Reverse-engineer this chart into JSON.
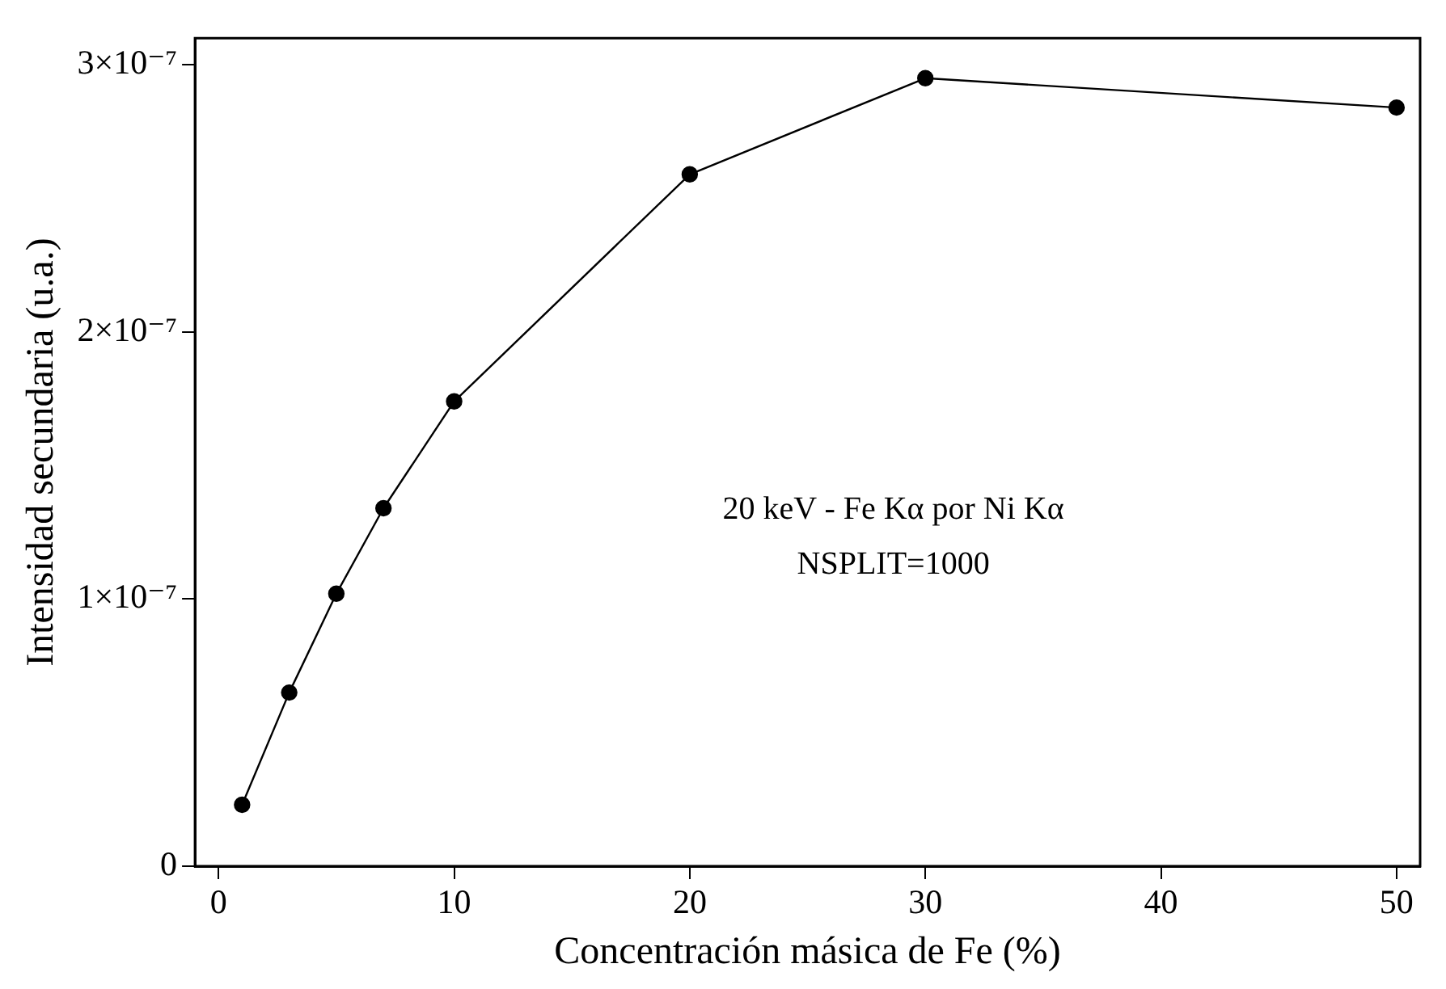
{
  "chart_data": {
    "type": "line",
    "xlabel": "Concentración másica de Fe (%)",
    "ylabel": "Intensidad secundaria (u.a.)",
    "x": [
      1,
      3,
      5,
      7,
      10,
      20,
      30,
      50
    ],
    "series": [
      {
        "color": "#000000",
        "values": [
          2.3e-08,
          6.5e-08,
          1.02e-07,
          1.34e-07,
          1.74e-07,
          2.59e-07,
          2.95e-07,
          2.84e-07
        ]
      }
    ],
    "xlim": [
      -1,
      51
    ],
    "xticks": [
      0,
      10,
      20,
      30,
      40,
      50
    ],
    "ylim": [
      0,
      3.1e-07
    ],
    "yticks": [
      0,
      {
        "value": 1e-07,
        "label": "1×10⁻⁷"
      },
      {
        "value": 2e-07,
        "label": "2×10⁻⁷"
      },
      {
        "value": 3e-07,
        "label": "3×10⁻⁷"
      }
    ],
    "annotations": [
      "20 keV - Fe Kα por Ni Kα",
      "NSPLIT=1000"
    ],
    "marker": "circle",
    "line_style": "solid",
    "grid": false,
    "legend": false
  }
}
